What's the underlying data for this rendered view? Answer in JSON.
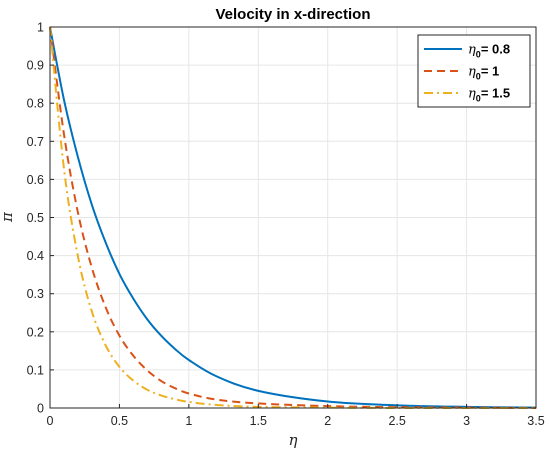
{
  "chart_data": {
    "type": "line",
    "title": "Velocity in x-direction",
    "xlabel": "η",
    "ylabel": "π",
    "xlim": [
      0,
      3.5
    ],
    "ylim": [
      0,
      1
    ],
    "x_ticks": [
      "0",
      "0.5",
      "1",
      "1.5",
      "2",
      "2.5",
      "3",
      "3.5"
    ],
    "y_ticks": [
      "0",
      "0.1",
      "0.2",
      "0.3",
      "0.4",
      "0.5",
      "0.6",
      "0.7",
      "0.8",
      "0.9",
      "1"
    ],
    "grid": true,
    "legend_position": "top-right",
    "series": [
      {
        "name_base": "η",
        "name_sub": "0",
        "name_rest": "= 0.8",
        "color": "#0072BD",
        "style": "solid",
        "x": [
          0,
          0.1,
          0.2,
          0.3,
          0.4,
          0.5,
          0.6,
          0.7,
          0.8,
          0.9,
          1.0,
          1.2,
          1.5,
          2.0,
          2.5,
          3.0,
          3.5
        ],
        "y": [
          1.0,
          0.81,
          0.66,
          0.535,
          0.435,
          0.352,
          0.287,
          0.233,
          0.19,
          0.155,
          0.126,
          0.083,
          0.045,
          0.017,
          0.007,
          0.003,
          0.001
        ]
      },
      {
        "name_base": "η",
        "name_sub": "0",
        "name_rest": "= 1",
        "color": "#D95319",
        "style": "dashed",
        "x": [
          0,
          0.1,
          0.2,
          0.3,
          0.4,
          0.5,
          0.6,
          0.7,
          0.8,
          0.9,
          1.0,
          1.2,
          1.5,
          2.0,
          2.5,
          3.0,
          3.5
        ],
        "y": [
          1.0,
          0.72,
          0.515,
          0.37,
          0.265,
          0.19,
          0.137,
          0.099,
          0.071,
          0.052,
          0.038,
          0.022,
          0.012,
          0.005,
          0.002,
          0.001,
          0.0
        ]
      },
      {
        "name_base": "η",
        "name_sub": "0",
        "name_rest": "= 1.5",
        "color": "#EDB120",
        "style": "dashdot",
        "x": [
          0,
          0.1,
          0.2,
          0.3,
          0.4,
          0.5,
          0.6,
          0.7,
          0.8,
          0.9,
          1.0,
          1.2,
          1.5,
          2.0,
          2.5,
          3.0,
          3.5
        ],
        "y": [
          1.0,
          0.63,
          0.4,
          0.255,
          0.165,
          0.108,
          0.072,
          0.048,
          0.033,
          0.023,
          0.016,
          0.008,
          0.003,
          0.001,
          0.0,
          0.0,
          0.0
        ]
      }
    ]
  }
}
